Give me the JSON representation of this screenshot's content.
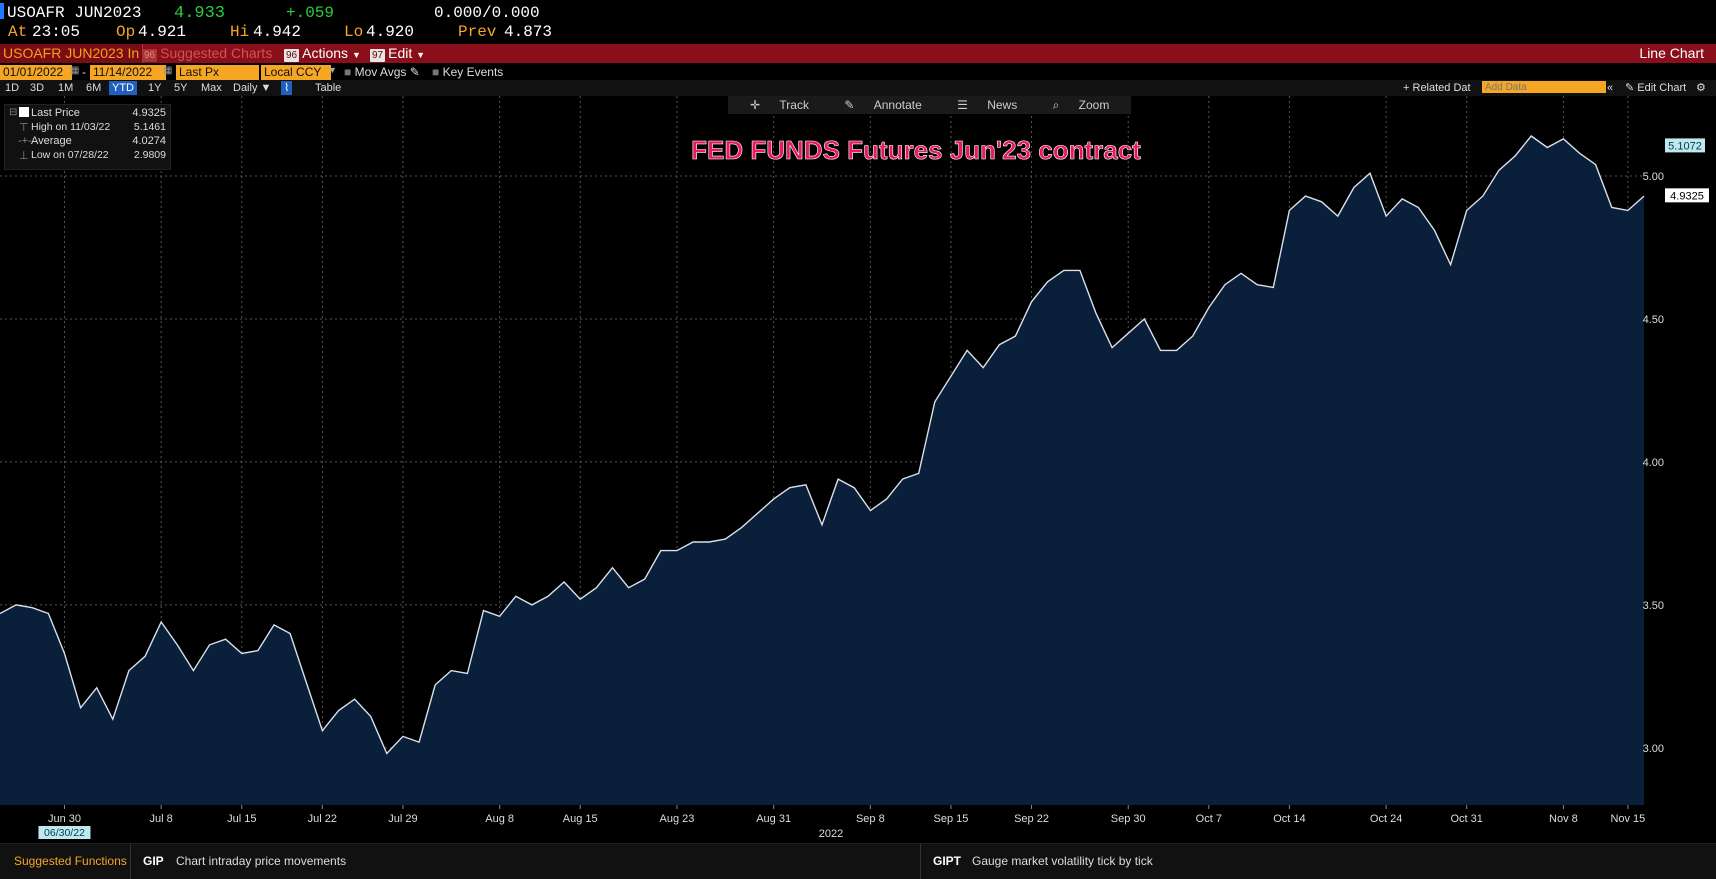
{
  "quote": {
    "ticker": "USOAFR JUN2023",
    "last": "4.933",
    "change": "+.059",
    "bid_ask": "0.000/0.000",
    "at_label": "At",
    "at_time": "23:05",
    "op_label": "Op",
    "op": "4.921",
    "hi_label": "Hi",
    "hi": "4.942",
    "lo_label": "Lo",
    "lo": "4.920",
    "prev_label": "Prev",
    "prev": "4.873"
  },
  "menubar": {
    "security": "USOAFR JUN2023 In",
    "suggested_num": "96",
    "suggested": "Suggested Charts",
    "actions_num": "96",
    "actions": "Actions",
    "edit_num": "97",
    "edit": "Edit",
    "chart_type": "Line Chart"
  },
  "controls": {
    "start_date": "01/01/2022",
    "end_date": "11/14/2022",
    "field": "Last Px",
    "currency": "Local CCY",
    "mov_avgs": "Mov Avgs",
    "key_events": "Key Events",
    "ranges": [
      "1D",
      "3D",
      "1M",
      "6M",
      "YTD",
      "1Y",
      "5Y",
      "Max"
    ],
    "selected_range": "YTD",
    "period": "Daily",
    "table": "Table",
    "related_data": "Related Dat",
    "add_data_placeholder": "Add Data",
    "edit_chart": "Edit Chart"
  },
  "chart_toolbar": [
    "Track",
    "Annotate",
    "News",
    "Zoom"
  ],
  "legend": {
    "last_price_label": "Last Price",
    "last_price": "4.9325",
    "high_label": "High on 11/03/22",
    "high": "5.1461",
    "average_label": "Average",
    "average": "4.0274",
    "low_label": "Low on 07/28/22",
    "low": "2.9809"
  },
  "chart_data": {
    "type": "area",
    "title": "FED FUNDS Futures Jun'23 contract",
    "ylim": [
      2.8,
      5.28
    ],
    "yticks": [
      3.0,
      3.5,
      4.0,
      4.5,
      5.0
    ],
    "ytick_labels": [
      "3.00",
      "3.50",
      "4.00",
      "4.50",
      "5.00"
    ],
    "x_tick_labels": [
      "Jun 30",
      "Jul 8",
      "Jul 15",
      "Jul 22",
      "Jul 29",
      "Aug 8",
      "Aug 15",
      "Aug 23",
      "Aug 31",
      "Sep 8",
      "Sep 15",
      "Sep 22",
      "Sep 30",
      "Oct 7",
      "Oct 14",
      "Oct 24",
      "Oct 31",
      "Nov 8",
      "Nov 15"
    ],
    "x_tick_index": [
      4,
      10,
      15,
      20,
      25,
      31,
      36,
      42,
      48,
      54,
      59,
      64,
      70,
      75,
      80,
      86,
      91,
      97,
      101
    ],
    "year_label": "2022",
    "cursor_date": "06/30/22",
    "grid": true,
    "last_value_label": "4.9325",
    "high_value_label": "5.1072",
    "values": [
      3.47,
      3.5,
      3.49,
      3.47,
      3.33,
      3.14,
      3.21,
      3.1,
      3.27,
      3.32,
      3.44,
      3.36,
      3.27,
      3.36,
      3.38,
      3.33,
      3.34,
      3.43,
      3.4,
      3.23,
      3.06,
      3.13,
      3.17,
      3.11,
      2.98,
      3.04,
      3.02,
      3.22,
      3.27,
      3.26,
      3.48,
      3.46,
      3.53,
      3.5,
      3.53,
      3.58,
      3.52,
      3.56,
      3.63,
      3.56,
      3.59,
      3.69,
      3.69,
      3.72,
      3.72,
      3.73,
      3.77,
      3.82,
      3.87,
      3.91,
      3.92,
      3.78,
      3.94,
      3.91,
      3.83,
      3.87,
      3.94,
      3.96,
      4.21,
      4.3,
      4.39,
      4.33,
      4.41,
      4.44,
      4.56,
      4.63,
      4.67,
      4.67,
      4.52,
      4.4,
      4.45,
      4.5,
      4.39,
      4.39,
      4.44,
      4.54,
      4.62,
      4.66,
      4.62,
      4.61,
      4.88,
      4.93,
      4.91,
      4.86,
      4.96,
      5.01,
      4.86,
      4.92,
      4.89,
      4.81,
      4.69,
      4.88,
      4.93,
      5.02,
      5.07,
      5.14,
      5.1,
      5.13,
      5.08,
      5.04,
      4.89,
      4.88,
      4.93
    ]
  },
  "bottom": {
    "suggested": "Suggested Functions",
    "f1_code": "GIP",
    "f1_desc": "Chart intraday price movements",
    "f2_code": "GIPT",
    "f2_desc": "Gauge market volatility tick by tick"
  },
  "colors": {
    "area_fill": "#0a1f3a",
    "line": "#d8e0ea",
    "title": "#e8195c",
    "green": "#27d13b",
    "orange": "#f5a623",
    "menubar": "#8a0f1b"
  }
}
